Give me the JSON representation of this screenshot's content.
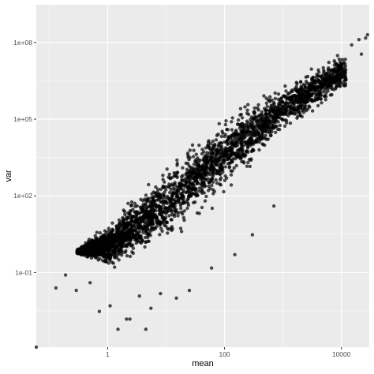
{
  "chart_data": {
    "type": "scatter",
    "title": "",
    "xlabel": "mean",
    "ylabel": "var",
    "x_scale": "log10",
    "y_scale": "log10",
    "xlim": [
      0.06,
      30000
    ],
    "ylim": [
      0.00012,
      3000000000
    ],
    "x_ticks": [
      {
        "value": 1,
        "label": "1"
      },
      {
        "value": 100,
        "label": "100"
      },
      {
        "value": 10000,
        "label": "10000"
      }
    ],
    "y_ticks": [
      {
        "value": 0.1,
        "label": "1e-01"
      },
      {
        "value": 100,
        "label": "1e+02"
      },
      {
        "value": 100000,
        "label": "1e+05"
      },
      {
        "value": 100000000,
        "label": "1e+08"
      }
    ],
    "grid": true,
    "panel_background": "#ebebeb",
    "grid_color": "#ffffff",
    "point_color": "#000000",
    "point_opacity": 0.7,
    "dense_cloud": {
      "description": "thousands of overlapping points forming a wedge",
      "upper_edge": [
        [
          0.3,
          0.8
        ],
        [
          1,
          10
        ],
        [
          10,
          2000
        ],
        [
          100,
          150000
        ],
        [
          1000,
          3000000
        ],
        [
          10000,
          40000000
        ]
      ],
      "lower_edge": [
        [
          0.3,
          0.5
        ],
        [
          1,
          0.05
        ],
        [
          10,
          0.3
        ],
        [
          100,
          30
        ],
        [
          1000,
          8000
        ],
        [
          10000,
          600000
        ]
      ]
    },
    "points": [
      {
        "x": 0.06,
        "y": 0.00012
      },
      {
        "x": 0.13,
        "y": 0.025
      },
      {
        "x": 0.19,
        "y": 0.08
      },
      {
        "x": 0.29,
        "y": 0.02
      },
      {
        "x": 0.5,
        "y": 0.04
      },
      {
        "x": 0.72,
        "y": 0.003
      },
      {
        "x": 1.1,
        "y": 0.005
      },
      {
        "x": 1.5,
        "y": 0.0006
      },
      {
        "x": 2.1,
        "y": 0.0015
      },
      {
        "x": 2.4,
        "y": 0.0015
      },
      {
        "x": 3.5,
        "y": 0.012
      },
      {
        "x": 4.5,
        "y": 0.0006
      },
      {
        "x": 5.5,
        "y": 0.004
      },
      {
        "x": 8,
        "y": 0.015
      },
      {
        "x": 15,
        "y": 0.01
      },
      {
        "x": 25,
        "y": 0.02
      },
      {
        "x": 60,
        "y": 0.15
      },
      {
        "x": 150,
        "y": 0.5
      },
      {
        "x": 300,
        "y": 3
      },
      {
        "x": 700,
        "y": 40
      },
      {
        "x": 1200,
        "y": 300000
      },
      {
        "x": 2000,
        "y": 1500000
      },
      {
        "x": 2500,
        "y": 3000000
      },
      {
        "x": 3200,
        "y": 1000000
      },
      {
        "x": 4000,
        "y": 5000000
      },
      {
        "x": 5000,
        "y": 8000000
      },
      {
        "x": 6000,
        "y": 10000000
      },
      {
        "x": 9000,
        "y": 12000000
      },
      {
        "x": 15000,
        "y": 80000000
      },
      {
        "x": 20000,
        "y": 130000000
      },
      {
        "x": 22000,
        "y": 35000000
      },
      {
        "x": 28000,
        "y": 200000000
      },
      {
        "x": 26000,
        "y": 150000000
      }
    ]
  }
}
